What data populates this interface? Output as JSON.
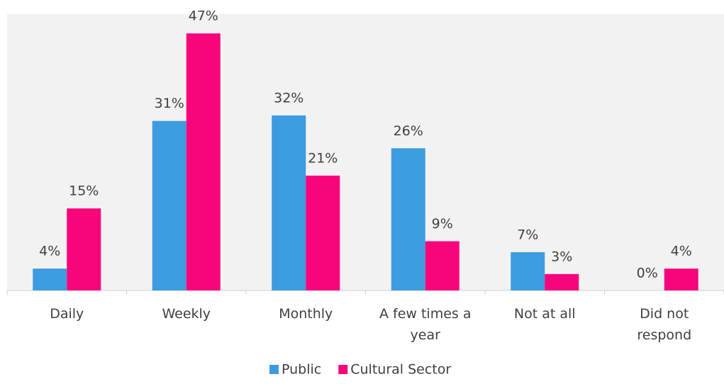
{
  "chart_data": {
    "type": "bar",
    "categories": [
      "Daily",
      "Weekly",
      "Monthly",
      "A few times a year",
      "Not at all",
      "Did not respond"
    ],
    "series": [
      {
        "name": "Public",
        "color": "#3d9be0",
        "values": [
          4,
          31,
          32,
          26,
          7,
          0
        ],
        "value_labels": [
          "4%",
          "31%",
          "32%",
          "26%",
          "7%",
          "0%"
        ]
      },
      {
        "name": "Cultural Sector",
        "color": "#f8047b",
        "values": [
          15,
          47,
          21,
          9,
          3,
          4
        ],
        "value_labels": [
          "15%",
          "47%",
          "21%",
          "9%",
          "3%",
          "4%"
        ]
      }
    ],
    "ylim": [
      0,
      50
    ],
    "legend": "bottom"
  }
}
